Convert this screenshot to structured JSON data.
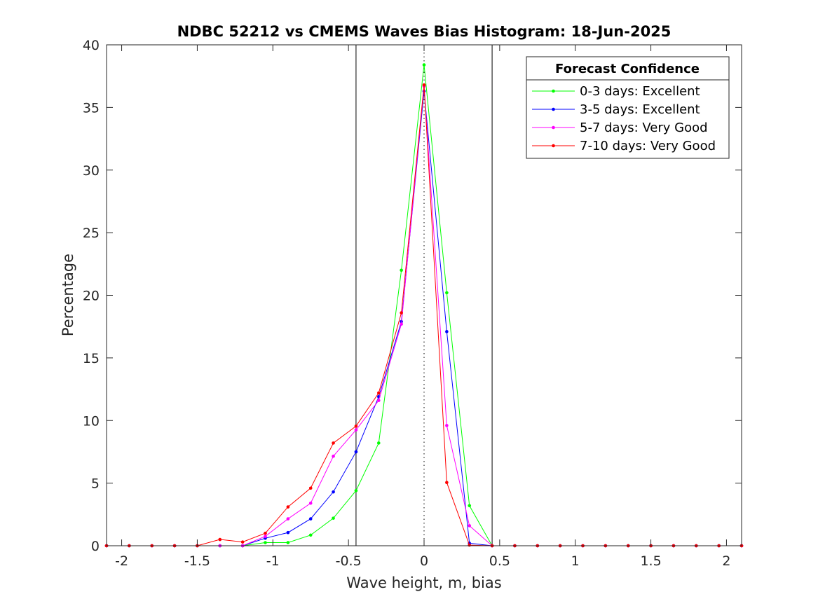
{
  "chart_data": {
    "type": "line",
    "title": "NDBC 52212 vs CMEMS Waves Bias Histogram: 18-Jun-2025",
    "xlabel": "Wave height, m, bias",
    "ylabel": "Percentage",
    "xlim": [
      -2.1,
      2.1
    ],
    "ylim": [
      0,
      40
    ],
    "xticks": [
      -2,
      -1.5,
      -1,
      -0.5,
      0,
      0.5,
      1,
      1.5,
      2
    ],
    "xtick_labels": [
      "-2",
      "-1.5",
      "-1",
      "-0.5",
      "0",
      "0.5",
      "1",
      "1.5",
      "2"
    ],
    "yticks": [
      0,
      5,
      10,
      15,
      20,
      25,
      30,
      35,
      40
    ],
    "ytick_labels": [
      "0",
      "5",
      "10",
      "15",
      "20",
      "25",
      "30",
      "35",
      "40"
    ],
    "grid": false,
    "vertical_lines": [
      {
        "x": -0.45,
        "style": "solid",
        "color": "#000000"
      },
      {
        "x": 0,
        "style": "dotted",
        "color": "#000000"
      },
      {
        "x": 0.45,
        "style": "solid",
        "color": "#000000"
      }
    ],
    "legend": {
      "title": "Forecast Confidence",
      "location": "top-right"
    },
    "x": [
      -2.1,
      -1.95,
      -1.8,
      -1.65,
      -1.5,
      -1.35,
      -1.2,
      -1.05,
      -0.9,
      -0.75,
      -0.6,
      -0.45,
      -0.3,
      -0.15,
      0,
      0.15,
      0.3,
      0.45,
      0.6,
      0.75,
      0.9,
      1.05,
      1.2,
      1.35,
      1.5,
      1.65,
      1.8,
      1.95,
      2.1
    ],
    "series": [
      {
        "name": "0-3 days: Excellent",
        "color": "#00ff00",
        "values": [
          0,
          0,
          0,
          0,
          0,
          0,
          0,
          0.25,
          0.25,
          0.85,
          2.2,
          4.4,
          8.2,
          22.0,
          38.4,
          20.2,
          3.2,
          0,
          0,
          0,
          0,
          0,
          0,
          0,
          0,
          0,
          0,
          0,
          0
        ]
      },
      {
        "name": "3-5 days: Excellent",
        "color": "#0000ff",
        "values": [
          0,
          0,
          0,
          0,
          0,
          0,
          0,
          0.6,
          1.05,
          2.15,
          4.3,
          7.5,
          11.9,
          17.9,
          36.3,
          17.1,
          0.2,
          0,
          0,
          0,
          0,
          0,
          0,
          0,
          0,
          0,
          0,
          0,
          0
        ]
      },
      {
        "name": "5-7 days: Very Good",
        "color": "#ff00ff",
        "values": [
          0,
          0,
          0,
          0,
          0,
          0,
          0,
          0.75,
          2.15,
          3.4,
          7.15,
          9.25,
          11.6,
          17.7,
          36.7,
          9.6,
          1.6,
          0,
          0,
          0,
          0,
          0,
          0,
          0,
          0,
          0,
          0,
          0,
          0
        ]
      },
      {
        "name": "7-10 days: Very Good",
        "color": "#ff0000",
        "values": [
          0,
          0,
          0,
          0,
          0,
          0.5,
          0.3,
          1.0,
          3.1,
          4.6,
          8.2,
          9.55,
          12.2,
          18.6,
          36.8,
          5.05,
          0.05,
          0,
          0,
          0,
          0,
          0,
          0,
          0,
          0,
          0,
          0,
          0,
          0
        ]
      }
    ]
  }
}
